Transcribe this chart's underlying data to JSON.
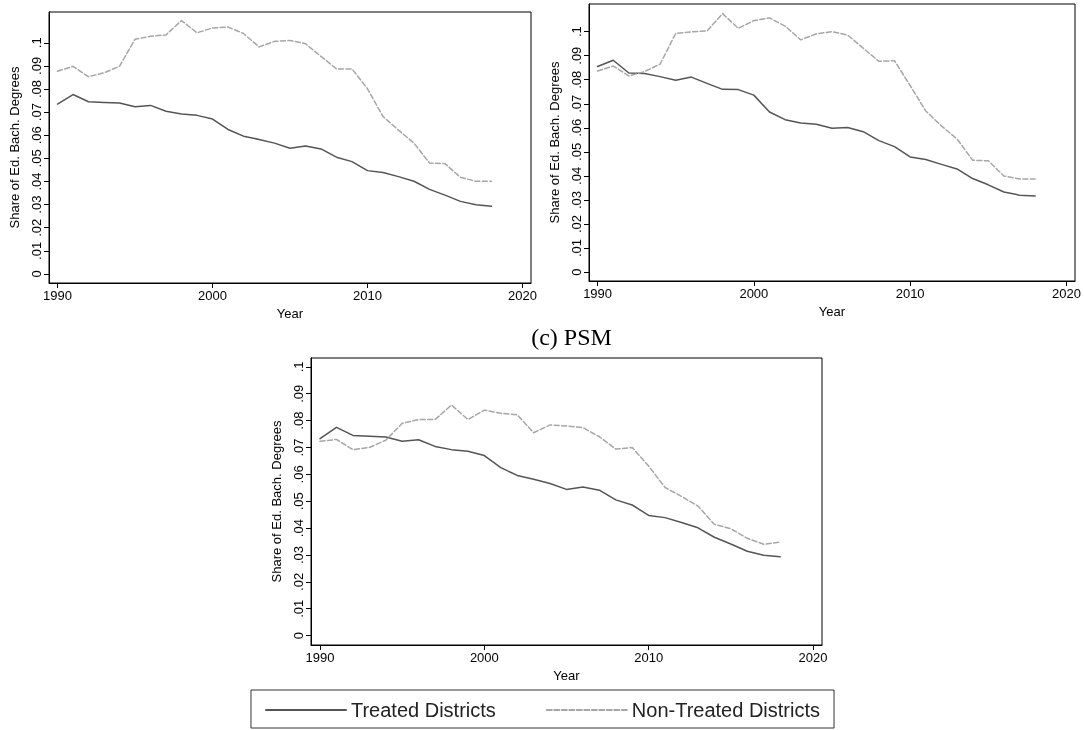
{
  "chart_data": [
    {
      "type": "line",
      "xlabel": "Year",
      "ylabel": "Share of Ed. Bach. Degrees",
      "x": [
        1990,
        1991,
        1992,
        1993,
        1994,
        1995,
        1996,
        1997,
        1998,
        1999,
        2000,
        2001,
        2002,
        2003,
        2004,
        2005,
        2006,
        2007,
        2008,
        2009,
        2010,
        2011,
        2012,
        2013,
        2014,
        2015,
        2016,
        2017,
        2018
      ],
      "series": [
        {
          "color": "#555555",
          "line_style": "solid",
          "values": [
            0.0735,
            0.0776,
            0.0745,
            0.0742,
            0.0739,
            0.0723,
            0.0729,
            0.0704,
            0.0692,
            0.0686,
            0.067,
            0.0625,
            0.0596,
            0.0582,
            0.0566,
            0.0544,
            0.0553,
            0.0541,
            0.0505,
            0.0486,
            0.0447,
            0.0439,
            0.0421,
            0.0401,
            0.0366,
            0.0341,
            0.0314,
            0.0299,
            0.0293
          ]
        },
        {
          "color": "#a6a6a6",
          "line_style": "dashed",
          "values": [
            0.0877,
            0.0898,
            0.0853,
            0.087,
            0.0898,
            0.1015,
            0.1028,
            0.1034,
            0.1096,
            0.1043,
            0.1064,
            0.1068,
            0.104,
            0.0982,
            0.1006,
            0.101,
            0.0996,
            0.0941,
            0.0887,
            0.0887,
            0.0801,
            0.0681,
            0.0622,
            0.0566,
            0.048,
            0.0477,
            0.0418,
            0.0401,
            0.0401
          ]
        }
      ],
      "xlim": [
        1989.45,
        2020.55
      ],
      "xticks": [
        1990,
        2000,
        2010,
        2020
      ],
      "ylim": [
        -0.0039,
        0.1133
      ],
      "yticks": [
        {
          "value": 0,
          "label": "0"
        },
        {
          "value": 0.01,
          "label": ".01"
        },
        {
          "value": 0.02,
          "label": ".02"
        },
        {
          "value": 0.03,
          "label": ".03"
        },
        {
          "value": 0.04,
          "label": ".04"
        },
        {
          "value": 0.05,
          "label": ".05"
        },
        {
          "value": 0.06,
          "label": ".06"
        },
        {
          "value": 0.07,
          "label": ".07"
        },
        {
          "value": 0.08,
          "label": ".08"
        },
        {
          "value": 0.09,
          "label": ".09"
        },
        {
          "value": 0.1,
          "label": ".1"
        }
      ],
      "grid": false,
      "legend": false,
      "marker": "none"
    },
    {
      "type": "line",
      "xlabel": "Year",
      "ylabel": "Share of Ed. Bach. Degrees",
      "x": [
        1990,
        1991,
        1992,
        1993,
        1994,
        1995,
        1996,
        1997,
        1998,
        1999,
        2000,
        2001,
        2002,
        2003,
        2004,
        2005,
        2006,
        2007,
        2008,
        2009,
        2010,
        2011,
        2012,
        2013,
        2014,
        2015,
        2016,
        2017,
        2018
      ],
      "series": [
        {
          "color": "#555555",
          "line_style": "solid",
          "values": [
            0.0855,
            0.0881,
            0.0828,
            0.0826,
            0.0813,
            0.0798,
            0.0811,
            0.0785,
            0.076,
            0.0759,
            0.0736,
            0.0666,
            0.0634,
            0.062,
            0.0615,
            0.0598,
            0.0601,
            0.0584,
            0.0547,
            0.0522,
            0.0479,
            0.0468,
            0.0448,
            0.0429,
            0.0389,
            0.0363,
            0.0333,
            0.032,
            0.0317
          ]
        },
        {
          "color": "#a6a6a6",
          "line_style": "dashed",
          "values": [
            0.0836,
            0.0857,
            0.0816,
            0.0834,
            0.0865,
            0.0993,
            0.0999,
            0.1003,
            0.1075,
            0.1014,
            0.1046,
            0.1057,
            0.1023,
            0.0966,
            0.0991,
            0.1,
            0.0986,
            0.0931,
            0.0877,
            0.0879,
            0.0776,
            0.067,
            0.0608,
            0.0554,
            0.0465,
            0.0463,
            0.04,
            0.0387,
            0.0387
          ]
        }
      ],
      "xlim": [
        1989.45,
        2020.55
      ],
      "xticks": [
        1990,
        2000,
        2010,
        2020
      ],
      "ylim": [
        -0.0037,
        0.1115
      ],
      "yticks": [
        {
          "value": 0,
          "label": "0"
        },
        {
          "value": 0.01,
          "label": ".01"
        },
        {
          "value": 0.02,
          "label": ".02"
        },
        {
          "value": 0.03,
          "label": ".03"
        },
        {
          "value": 0.04,
          "label": ".04"
        },
        {
          "value": 0.05,
          "label": ".05"
        },
        {
          "value": 0.06,
          "label": ".06"
        },
        {
          "value": 0.07,
          "label": ".07"
        },
        {
          "value": 0.08,
          "label": ".08"
        },
        {
          "value": 0.09,
          "label": ".09"
        },
        {
          "value": 0.1,
          "label": ".1"
        }
      ],
      "grid": false,
      "legend": false,
      "marker": "none"
    },
    {
      "type": "line",
      "title": "(c) PSM",
      "xlabel": "Year",
      "ylabel": "Share of Ed. Bach. Degrees",
      "x": [
        1990,
        1991,
        1992,
        1993,
        1994,
        1995,
        1996,
        1997,
        1998,
        1999,
        2000,
        2001,
        2002,
        2003,
        2004,
        2005,
        2006,
        2007,
        2008,
        2009,
        2010,
        2011,
        2012,
        2013,
        2014,
        2015,
        2016,
        2017,
        2018
      ],
      "series": [
        {
          "name": "Treated Districts",
          "color": "#555555",
          "line_style": "solid",
          "values": [
            0.0733,
            0.0775,
            0.0745,
            0.0742,
            0.0739,
            0.0723,
            0.0729,
            0.0704,
            0.0692,
            0.0686,
            0.067,
            0.0625,
            0.0596,
            0.0582,
            0.0566,
            0.0544,
            0.0553,
            0.0541,
            0.0505,
            0.0486,
            0.0447,
            0.0439,
            0.0421,
            0.0401,
            0.0366,
            0.0341,
            0.0314,
            0.0299,
            0.0293
          ]
        },
        {
          "name": "Non-Treated Districts",
          "color": "#a6a6a6",
          "line_style": "dashed",
          "values": [
            0.0723,
            0.073,
            0.0692,
            0.07,
            0.0727,
            0.079,
            0.0804,
            0.0804,
            0.0858,
            0.0804,
            0.0839,
            0.0827,
            0.0822,
            0.0755,
            0.0784,
            0.078,
            0.0774,
            0.074,
            0.0694,
            0.07,
            0.0631,
            0.0551,
            0.0518,
            0.0482,
            0.0414,
            0.0398,
            0.0362,
            0.034,
            0.0348
          ]
        }
      ],
      "xlim": [
        1989.45,
        2020.55
      ],
      "xticks": [
        1990,
        2000,
        2010,
        2020
      ],
      "ylim": [
        -0.0035,
        0.1033
      ],
      "yticks": [
        {
          "value": 0,
          "label": "0"
        },
        {
          "value": 0.01,
          "label": ".01"
        },
        {
          "value": 0.02,
          "label": ".02"
        },
        {
          "value": 0.03,
          "label": ".03"
        },
        {
          "value": 0.04,
          "label": ".04"
        },
        {
          "value": 0.05,
          "label": ".05"
        },
        {
          "value": 0.06,
          "label": ".06"
        },
        {
          "value": 0.07,
          "label": ".07"
        },
        {
          "value": 0.08,
          "label": ".08"
        },
        {
          "value": 0.09,
          "label": ".09"
        },
        {
          "value": 0.1,
          "label": ".1"
        }
      ],
      "grid": false,
      "legend": "bottom",
      "marker": "none"
    }
  ]
}
